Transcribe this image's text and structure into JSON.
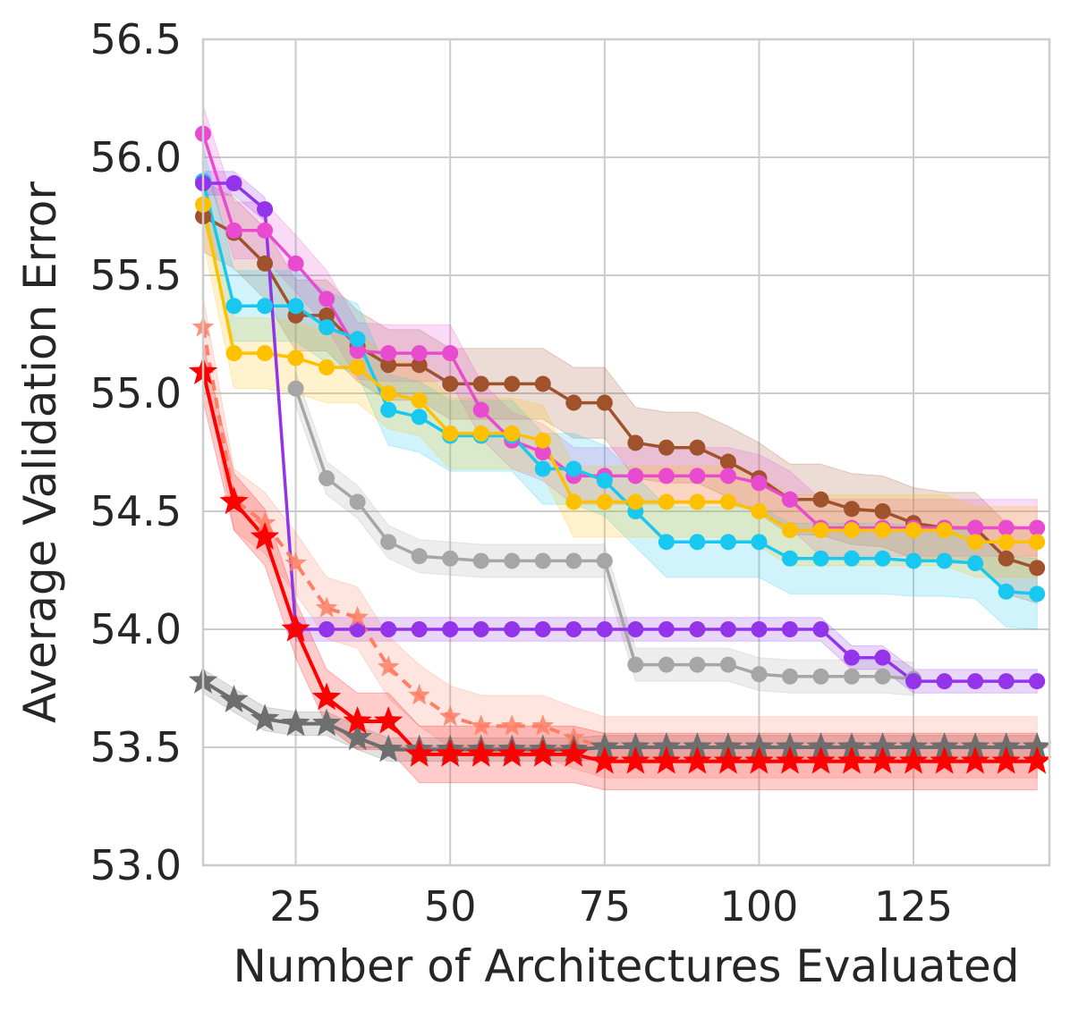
{
  "chart_data": {
    "type": "line",
    "title": "",
    "xlabel": "Number of Architectures Evaluated",
    "ylabel": "Average Validation Error",
    "xlim": [
      10,
      147
    ],
    "ylim": [
      53.0,
      56.5
    ],
    "xticks": [
      25,
      50,
      75,
      100,
      125
    ],
    "yticks": [
      53.0,
      53.5,
      54.0,
      54.5,
      55.0,
      55.5,
      56.0,
      56.5
    ],
    "ytick_labels": [
      "53.0",
      "53.5",
      "54.0",
      "54.5",
      "55.0",
      "55.5",
      "56.0",
      "56.5"
    ],
    "grid": true,
    "legend": "none",
    "series": [
      {
        "name": "brown",
        "color": "#a0522d",
        "marker": "circle",
        "dashed": false,
        "band": 0.15,
        "x": [
          10,
          15,
          20,
          25,
          30,
          35,
          40,
          45,
          50,
          55,
          60,
          65,
          70,
          75,
          80,
          85,
          90,
          95,
          100,
          105,
          110,
          115,
          120,
          125,
          130,
          135,
          140,
          145
        ],
        "y": [
          55.75,
          55.68,
          55.55,
          55.33,
          55.33,
          55.2,
          55.12,
          55.12,
          55.04,
          55.04,
          55.04,
          55.04,
          54.96,
          54.96,
          54.79,
          54.77,
          54.77,
          54.71,
          54.64,
          54.55,
          54.55,
          54.51,
          54.5,
          54.45,
          54.43,
          54.43,
          54.3,
          54.26
        ]
      },
      {
        "name": "magenta",
        "color": "#e84bd0",
        "marker": "circle",
        "dashed": false,
        "band": 0.12,
        "x": [
          10,
          15,
          20,
          25,
          30,
          35,
          40,
          45,
          50,
          55,
          60,
          65,
          70,
          75,
          80,
          85,
          90,
          95,
          100,
          105,
          110,
          115,
          120,
          125,
          130,
          135,
          140,
          145
        ],
        "y": [
          56.1,
          55.69,
          55.69,
          55.55,
          55.4,
          55.18,
          55.17,
          55.17,
          55.17,
          54.93,
          54.8,
          54.75,
          54.65,
          54.65,
          54.65,
          54.65,
          54.65,
          54.65,
          54.62,
          54.55,
          54.43,
          54.43,
          54.43,
          54.43,
          54.43,
          54.43,
          54.43,
          54.43
        ]
      },
      {
        "name": "cyan",
        "color": "#18c8f0",
        "marker": "circle",
        "dashed": false,
        "band": 0.15,
        "x": [
          10,
          15,
          20,
          25,
          30,
          35,
          40,
          45,
          50,
          55,
          60,
          65,
          70,
          75,
          80,
          85,
          90,
          95,
          100,
          105,
          110,
          115,
          120,
          125,
          130,
          135,
          140,
          145
        ],
        "y": [
          55.9,
          55.37,
          55.37,
          55.37,
          55.28,
          55.23,
          54.93,
          54.9,
          54.82,
          54.82,
          54.82,
          54.68,
          54.68,
          54.63,
          54.5,
          54.37,
          54.37,
          54.37,
          54.37,
          54.3,
          54.3,
          54.3,
          54.3,
          54.29,
          54.29,
          54.28,
          54.16,
          54.15
        ]
      },
      {
        "name": "orange",
        "color": "#ffc000",
        "marker": "circle",
        "dashed": false,
        "band": 0.15,
        "x": [
          10,
          15,
          20,
          25,
          30,
          35,
          40,
          45,
          50,
          55,
          60,
          65,
          70,
          75,
          80,
          85,
          90,
          95,
          100,
          105,
          110,
          115,
          120,
          125,
          130,
          135,
          140,
          145
        ],
        "y": [
          55.8,
          55.17,
          55.17,
          55.15,
          55.11,
          55.11,
          55.0,
          54.97,
          54.83,
          54.83,
          54.83,
          54.8,
          54.54,
          54.54,
          54.54,
          54.54,
          54.54,
          54.54,
          54.5,
          54.42,
          54.42,
          54.42,
          54.42,
          54.42,
          54.42,
          54.37,
          54.37,
          54.37
        ]
      },
      {
        "name": "gray",
        "color": "#a6a6a6",
        "marker": "circle",
        "dashed": false,
        "band": 0.07,
        "x": [
          25,
          30,
          35,
          40,
          45,
          50,
          55,
          60,
          65,
          70,
          75,
          80,
          85,
          90,
          95,
          100,
          105,
          110,
          115,
          120,
          125
        ],
        "y": [
          55.02,
          54.64,
          54.54,
          54.37,
          54.31,
          54.3,
          54.29,
          54.29,
          54.29,
          54.29,
          54.29,
          53.85,
          53.85,
          53.85,
          53.85,
          53.81,
          53.8,
          53.8,
          53.8,
          53.8,
          53.79
        ]
      },
      {
        "name": "violet",
        "color": "#9333ea",
        "marker": "circle",
        "dashed": false,
        "band": 0.05,
        "x": [
          10,
          15,
          20,
          25,
          30,
          35,
          40,
          45,
          50,
          55,
          60,
          65,
          70,
          75,
          80,
          85,
          90,
          95,
          100,
          105,
          110,
          115,
          120,
          125,
          130,
          135,
          140,
          145
        ],
        "y": [
          55.89,
          55.89,
          55.78,
          54.0,
          54.0,
          54.0,
          54.0,
          54.0,
          54.0,
          54.0,
          54.0,
          54.0,
          54.0,
          54.0,
          54.0,
          54.0,
          54.0,
          54.0,
          54.0,
          54.0,
          54.0,
          53.88,
          53.88,
          53.78,
          53.78,
          53.78,
          53.78,
          53.78
        ]
      },
      {
        "name": "salmon-dashed",
        "color": "#ff7f66",
        "marker": "star",
        "dashed": true,
        "band": 0.13,
        "x": [
          10,
          15,
          20,
          25,
          30,
          35,
          40,
          45,
          50,
          55,
          60,
          65,
          70,
          75,
          80,
          85,
          90,
          95,
          100,
          105,
          110,
          115,
          120,
          125,
          130,
          135,
          140,
          145
        ],
        "y": [
          55.28,
          54.55,
          54.45,
          54.28,
          54.09,
          54.05,
          53.84,
          53.72,
          53.63,
          53.59,
          53.59,
          53.59,
          53.54,
          53.5,
          53.5,
          53.5,
          53.5,
          53.5,
          53.5,
          53.5,
          53.5,
          53.5,
          53.5,
          53.5,
          53.5,
          53.5,
          53.5,
          53.5
        ]
      },
      {
        "name": "dark-gray",
        "color": "#6e6e6e",
        "marker": "star",
        "dashed": false,
        "band": 0.05,
        "x": [
          10,
          15,
          20,
          25,
          30,
          35,
          40,
          45,
          50,
          55,
          60,
          65,
          70,
          75,
          80,
          85,
          90,
          95,
          100,
          105,
          110,
          115,
          120,
          125,
          130,
          135,
          140,
          145
        ],
        "y": [
          53.78,
          53.7,
          53.62,
          53.6,
          53.6,
          53.54,
          53.49,
          53.49,
          53.49,
          53.49,
          53.49,
          53.49,
          53.49,
          53.5,
          53.5,
          53.5,
          53.5,
          53.5,
          53.5,
          53.5,
          53.5,
          53.5,
          53.5,
          53.5,
          53.5,
          53.5,
          53.5,
          53.5
        ]
      },
      {
        "name": "red",
        "color": "#ff0000",
        "marker": "star",
        "dashed": false,
        "band": 0.12,
        "x": [
          10,
          15,
          20,
          25,
          30,
          35,
          40,
          45,
          50,
          55,
          60,
          65,
          70,
          75,
          80,
          85,
          90,
          95,
          100,
          105,
          110,
          115,
          120,
          125,
          130,
          135,
          140,
          145
        ],
        "y": [
          55.09,
          54.54,
          54.39,
          54.0,
          53.71,
          53.61,
          53.61,
          53.47,
          53.47,
          53.47,
          53.47,
          53.47,
          53.47,
          53.44,
          53.44,
          53.44,
          53.44,
          53.44,
          53.44,
          53.44,
          53.44,
          53.44,
          53.44,
          53.44,
          53.44,
          53.44,
          53.44,
          53.44
        ]
      }
    ]
  }
}
